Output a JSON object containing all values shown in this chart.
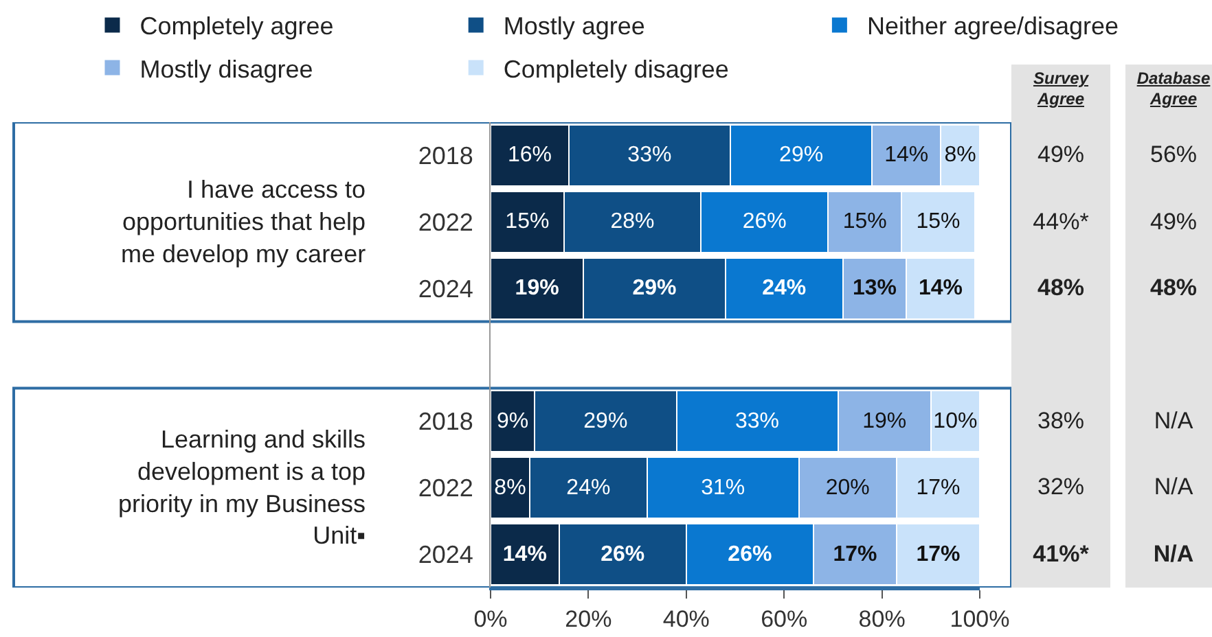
{
  "chart_data": [
    {
      "type": "bar",
      "orientation": "horizontal",
      "stacked": true,
      "legend": "top",
      "grid": false,
      "categories": [
        "2018",
        "2022",
        "2024",
        null,
        "2018",
        "2022",
        "2024"
      ],
      "series": [
        {
          "name": "Completely agree",
          "color": "#0b2a4a",
          "values": [
            16,
            15,
            19,
            null,
            9,
            8,
            14
          ],
          "value_labels": [
            "16%",
            "15%",
            "19%",
            null,
            "9%",
            "8%",
            "14%"
          ]
        },
        {
          "name": "Mostly agree",
          "color": "#0f4f86",
          "values": [
            33,
            28,
            29,
            null,
            29,
            24,
            26
          ],
          "value_labels": [
            "33%",
            "28%",
            "29%",
            null,
            "29%",
            "24%",
            "26%"
          ]
        },
        {
          "name": "Neither agree/disagree",
          "color": "#0a78d0",
          "values": [
            29,
            26,
            24,
            null,
            33,
            31,
            26
          ],
          "value_labels": [
            "29%",
            "26%",
            "24%",
            null,
            "33%",
            "31%",
            "26%"
          ]
        },
        {
          "name": "Mostly disagree",
          "color": "#8db4e6",
          "values": [
            14,
            15,
            13,
            null,
            19,
            20,
            17
          ],
          "value_labels": [
            "14%",
            "15%",
            "13%",
            null,
            "19%",
            "20%",
            "17%"
          ]
        },
        {
          "name": "Completely disagree",
          "color": "#c9e2fa",
          "values": [
            8,
            15,
            14,
            null,
            10,
            17,
            17
          ],
          "value_labels": [
            "8%",
            "15%",
            "14%",
            null,
            "10%",
            "17%",
            "17%"
          ]
        }
      ],
      "xlim": [
        0,
        100
      ],
      "xticks": [
        {
          "value": 0,
          "label": "0%"
        },
        {
          "value": 20,
          "label": "20%"
        },
        {
          "value": 40,
          "label": "40%"
        },
        {
          "value": 60,
          "label": "60%"
        },
        {
          "value": 80,
          "label": "80%"
        },
        {
          "value": 100,
          "label": "100%"
        }
      ],
      "annotations": [
        "I have access to opportunities that help me develop my career",
        "Learning and skills development is a top priority in my Business Unit▪"
      ]
    },
    {
      "type": "other",
      "categories": [
        "Survey Agree",
        "Database Agree"
      ],
      "cell_labels": [
        [
          "49%",
          "56%"
        ],
        [
          "44%*",
          "49%"
        ],
        [
          "48%",
          "48%"
        ],
        [
          null,
          null
        ],
        [
          "38%",
          "N/A"
        ],
        [
          "32%",
          "N/A"
        ],
        [
          "41%*",
          "N/A"
        ]
      ]
    }
  ]
}
